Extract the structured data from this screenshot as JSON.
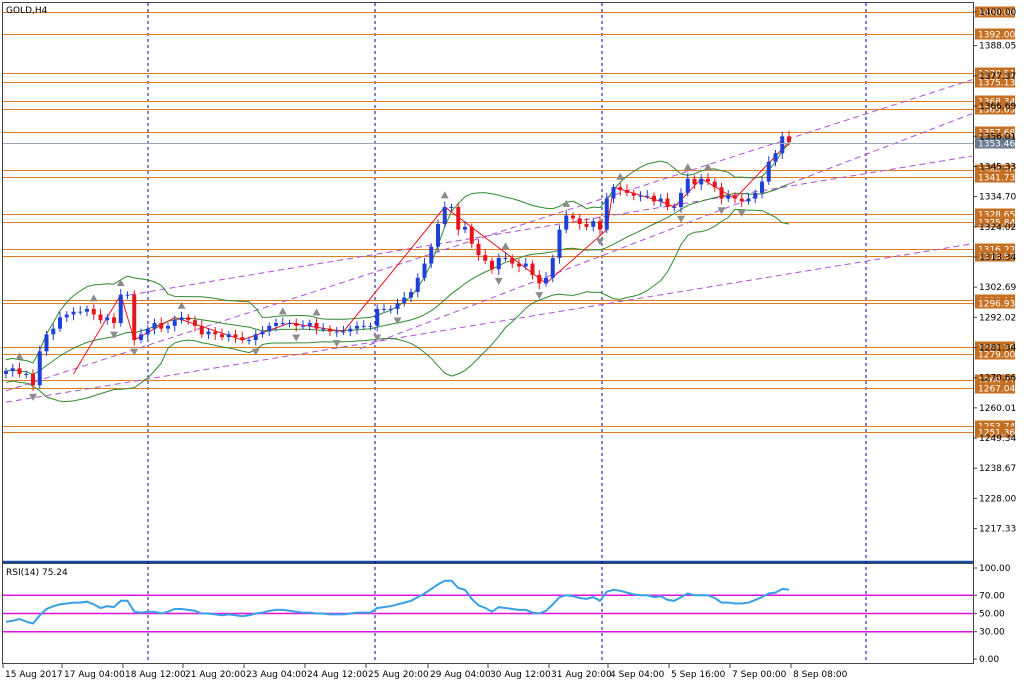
{
  "chart_data": {
    "type": "candlestick",
    "symbol": "GOLD,H4",
    "last_price": "1353.46",
    "price_axis": {
      "ylim": [
        1208,
        1401
      ],
      "ticks": [
        "1400.00",
        "1388.05",
        "1377.37",
        "1366.69",
        "1356.01",
        "1345.33",
        "1334.70",
        "1324.02",
        "1313.34",
        "1302.69",
        "1292.02",
        "1281.34",
        "1270.66",
        "1260.01",
        "1249.34",
        "1238.67",
        "1228.00",
        "1217.33"
      ]
    },
    "horizontal_levels": [
      "1400.00",
      "1392.00",
      "1378.51",
      "1375.13",
      "1368.34",
      "1365.63",
      "1357.68",
      "1344.20",
      "1341.73",
      "1328.65",
      "1325.84",
      "1316.22",
      "1313.57",
      "1298.11",
      "1296.93",
      "1281.70",
      "1279.00",
      "1269.71",
      "1267.04",
      "1253.74",
      "1251.36"
    ],
    "time_axis": [
      "15 Aug 2017",
      "17 Aug 04:00",
      "18 Aug 12:00",
      "21 Aug 20:00",
      "23 Aug 04:00",
      "24 Aug 12:00",
      "25 Aug 20:00",
      "29 Aug 04:00",
      "30 Aug 12:00",
      "31 Aug 20:00",
      "4 Sep 04:00",
      "5 Sep 16:00",
      "7 Sep 00:00",
      "8 Sep 08:00"
    ],
    "close": [
      1273,
      1274,
      1272,
      1272,
      1268,
      1280,
      1286,
      1288,
      1292,
      1293,
      1294,
      1294,
      1295,
      1293,
      1291,
      1292,
      1290,
      1300,
      1300,
      1284,
      1286,
      1288,
      1290,
      1288,
      1289,
      1291,
      1292,
      1291,
      1289,
      1286,
      1287,
      1286,
      1285,
      1286,
      1285,
      1284,
      1284,
      1286,
      1287,
      1289,
      1290,
      1290,
      1290,
      1289,
      1289,
      1290,
      1288,
      1288,
      1287,
      1287,
      1287,
      1288,
      1289,
      1289,
      1289,
      1295,
      1295,
      1295,
      1297,
      1299,
      1301,
      1306,
      1311,
      1317,
      1325,
      1331,
      1331,
      1323,
      1324,
      1318,
      1314,
      1312,
      1309,
      1313,
      1313,
      1311,
      1310,
      1311,
      1307,
      1304,
      1306,
      1313,
      1323,
      1328,
      1327,
      1325,
      1324,
      1326,
      1323,
      1334,
      1338,
      1337,
      1336,
      1335,
      1335,
      1335,
      1333,
      1334,
      1331,
      1331,
      1336,
      1341,
      1339,
      1341,
      1340,
      1338,
      1334,
      1335,
      1334,
      1333,
      1334,
      1336,
      1340,
      1347,
      1350,
      1356,
      1354
    ],
    "indicator": {
      "name": "RSI(14)",
      "value": "75.24",
      "ylim": [
        0,
        100
      ],
      "ticks": [
        "100.00",
        "70.00",
        "50.00",
        "30.00",
        "0.00"
      ],
      "levels": [
        70,
        50,
        30
      ],
      "values": [
        41,
        42,
        44,
        41,
        39,
        48,
        55,
        58,
        60,
        61,
        62,
        62,
        63,
        60,
        56,
        58,
        57,
        64,
        64,
        52,
        51,
        52,
        52,
        50,
        52,
        55,
        55,
        54,
        53,
        50,
        50,
        49,
        48,
        49,
        48,
        47,
        48,
        50,
        51,
        53,
        54,
        54,
        53,
        52,
        51,
        51,
        50,
        50,
        49,
        49,
        49,
        50,
        51,
        51,
        51,
        56,
        57,
        58,
        60,
        62,
        64,
        68,
        72,
        77,
        82,
        86,
        86,
        78,
        76,
        66,
        59,
        56,
        52,
        57,
        56,
        55,
        54,
        54,
        51,
        50,
        53,
        60,
        68,
        70,
        69,
        67,
        66,
        68,
        64,
        74,
        76,
        75,
        73,
        71,
        70,
        70,
        68,
        69,
        65,
        64,
        68,
        72,
        70,
        70,
        70,
        67,
        62,
        62,
        61,
        61,
        62,
        65,
        68,
        72,
        73,
        77,
        76
      ]
    },
    "colors": {
      "bull": "#1f3fd9",
      "bear": "#e8141c",
      "level": "#e07b1f",
      "level_label_bg": "#c56f22",
      "last_price_bg": "#6b7c8f",
      "band": "#2e8b2e",
      "trendline": "#b04fd6",
      "zigzag": "#e8141c",
      "rsi": "#3aa0e6",
      "rsi_level": "#e012e0",
      "grid": "#0000a8",
      "fractal": "#8c8c8c"
    }
  }
}
